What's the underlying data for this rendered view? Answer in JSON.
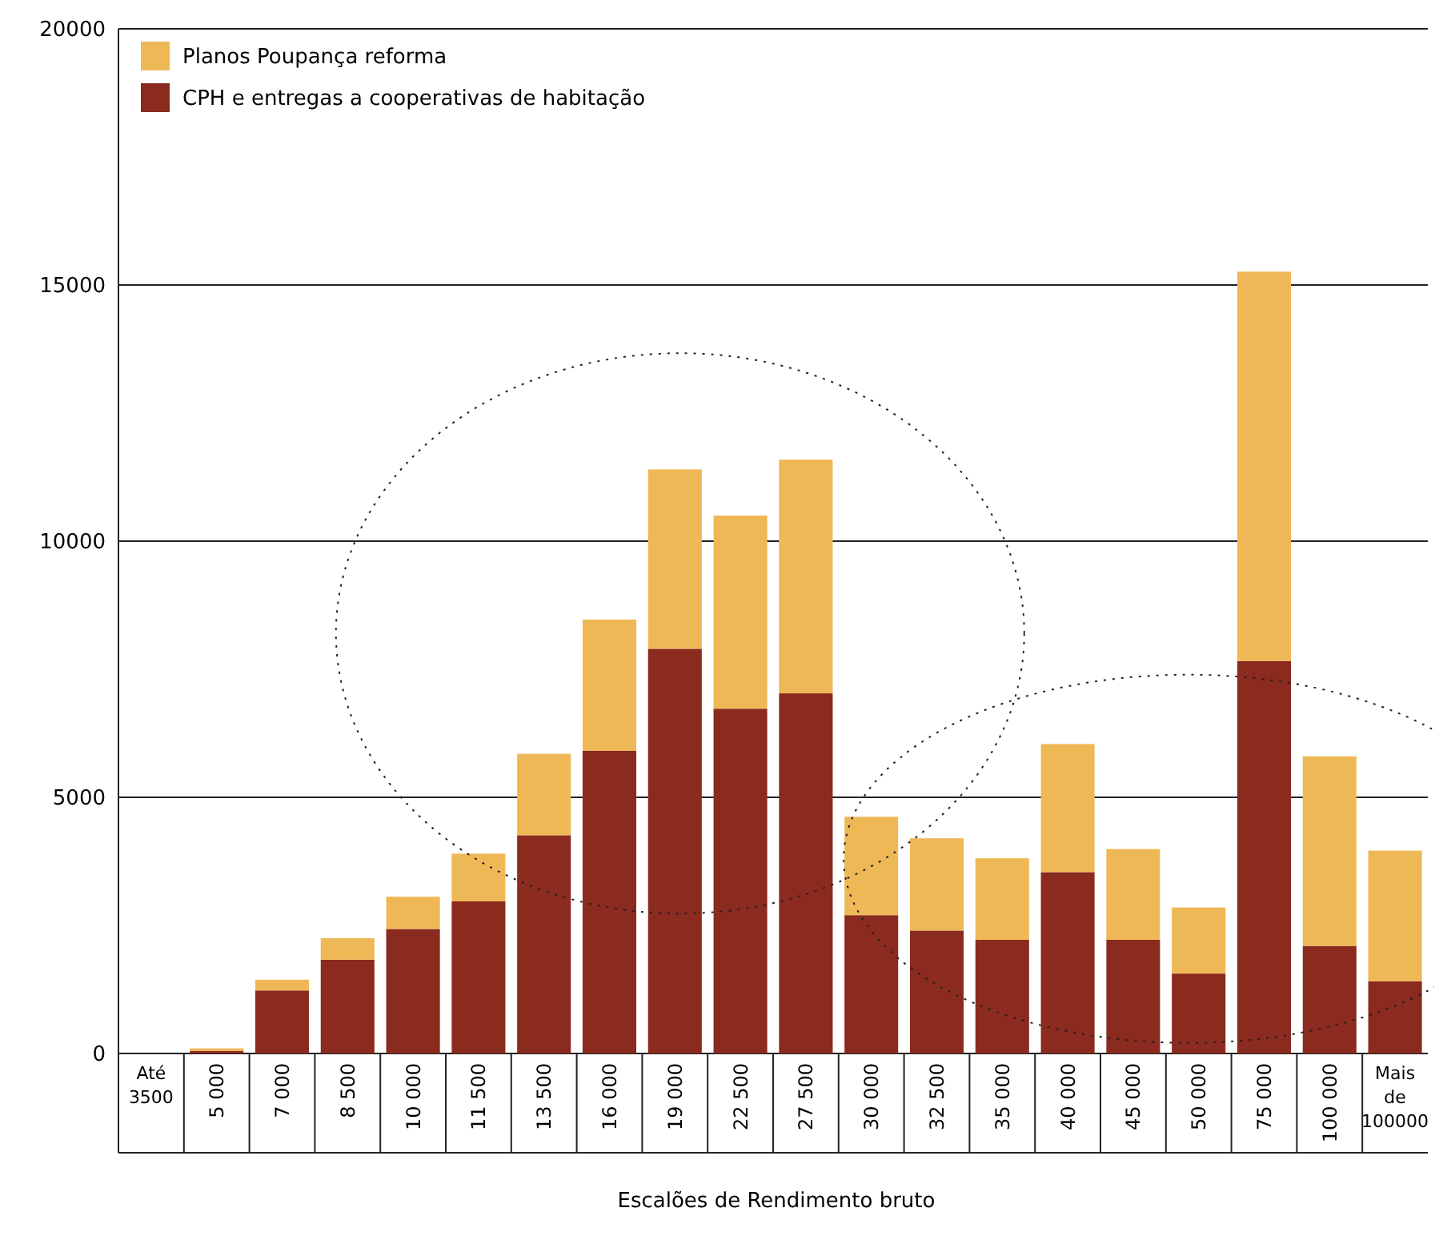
{
  "chart_data": {
    "type": "bar",
    "stacked": true,
    "xlabel": "Escalões de Rendimento bruto",
    "categories": [
      "Até 3500",
      "5 000",
      "7 000",
      "8 500",
      "10 000",
      "11 500",
      "13 500",
      "16 000",
      "19 000",
      "22 500",
      "27 500",
      "30 000",
      "32 500",
      "35 000",
      "40 000",
      "45 000",
      "50 000",
      "75 000",
      "100 000",
      "Mais de 100000"
    ],
    "series": [
      {
        "name": "CPH e entregas a cooperativas de habitação",
        "color": "#8b2a1e",
        "values": [
          0,
          50,
          1230,
          1830,
          2430,
          2970,
          4260,
          5910,
          7900,
          6730,
          7030,
          2700,
          2400,
          2220,
          3540,
          2220,
          1560,
          7660,
          2100,
          1410
        ]
      },
      {
        "name": "Planos Poupança reforma",
        "color": "#efb856",
        "values": [
          0,
          50,
          210,
          420,
          630,
          930,
          1590,
          2560,
          3500,
          3770,
          4560,
          1920,
          1800,
          1590,
          2500,
          1770,
          1290,
          7600,
          3700,
          2550
        ]
      }
    ],
    "ylim": [
      0,
      20000
    ],
    "yticks": [
      0,
      5000,
      10000,
      15000,
      20000
    ],
    "grid": "y",
    "legend": "top left"
  }
}
